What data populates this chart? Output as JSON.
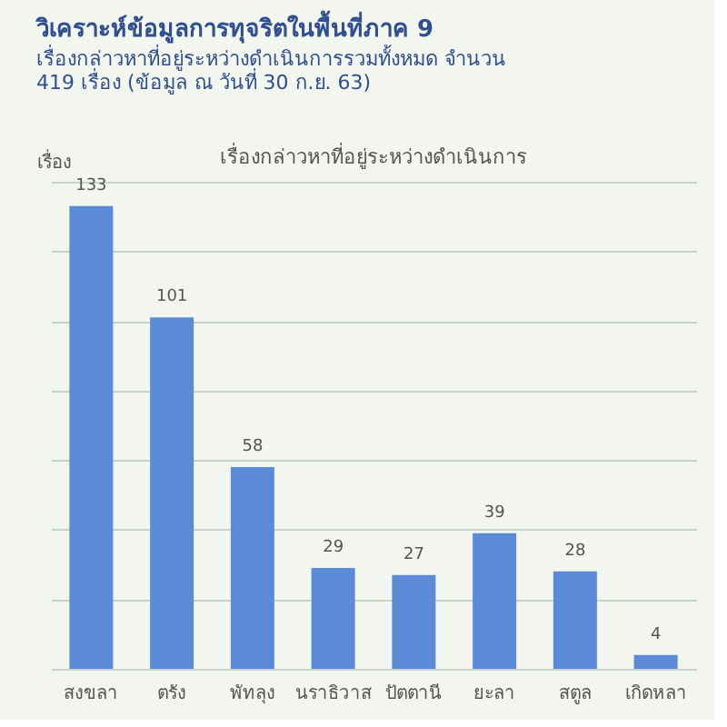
{
  "chart_data": {
    "type": "bar",
    "title": "วิเคราะห์ข้อมูลการทุจริตในพื้นที่ภาค 9",
    "subtitle": "เรื่องกล่าวหาที่อยู่ระหว่างดำเนินการรวมทั้งหมด จำนวน 419 เรื่อง (ข้อมูล ณ วันที่ 30 ก.ย. 63)",
    "annotations": [
      "เรื่องกล่าวหาที่อยู่ระหว่างดำเนินการ"
    ],
    "ylabel": "เรื่อง",
    "categories": [
      "สงขลา",
      "ตรัง",
      "พัทลุง",
      "นราธิวาส",
      "ปัตตานี",
      "ยะลา",
      "สตูล",
      "เกิดหลา"
    ],
    "values": [
      133,
      101,
      58,
      29,
      27,
      39,
      28,
      4
    ],
    "color": "#5b8bd6",
    "tick_labels": "x",
    "grid": "y",
    "data_labels": true
  }
}
